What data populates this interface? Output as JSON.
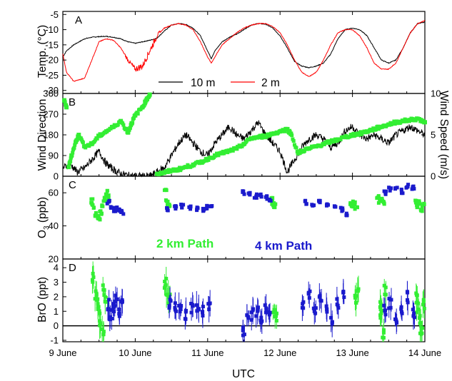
{
  "chart_data": [
    {
      "panel": "A",
      "type": "line",
      "ylabel": "Temp. (°C)",
      "ylim": [
        -31,
        -4
      ],
      "yticks": [
        "-5",
        "-10",
        "-15",
        "-20",
        "-25",
        "-30"
      ],
      "xlim": [
        9,
        14
      ],
      "series": [
        {
          "name": "10 m",
          "color": "#000000",
          "x": [
            9.0,
            9.05,
            9.15,
            9.3,
            9.4,
            9.5,
            9.6,
            9.7,
            9.8,
            9.9,
            10.0,
            10.1,
            10.2,
            10.3,
            10.4,
            10.5,
            10.6,
            10.7,
            10.8,
            10.9,
            11.0,
            11.05,
            11.1,
            11.2,
            11.3,
            11.4,
            11.5,
            11.6,
            11.7,
            11.8,
            11.9,
            12.0,
            12.1,
            12.2,
            12.3,
            12.4,
            12.5,
            12.6,
            12.7,
            12.8,
            12.9,
            13.0,
            13.1,
            13.2,
            13.3,
            13.4,
            13.5,
            13.6,
            13.7,
            13.8,
            13.9,
            14.0
          ],
          "y": [
            -19,
            -17,
            -15,
            -13,
            -12.5,
            -12.3,
            -12.2,
            -12.5,
            -13,
            -14,
            -14.5,
            -14,
            -13.5,
            -12.8,
            -10.5,
            -8.5,
            -8,
            -8.3,
            -9.5,
            -12,
            -17,
            -19.5,
            -17,
            -14,
            -12.5,
            -11.5,
            -10,
            -8.5,
            -8,
            -8.2,
            -9.5,
            -12,
            -16,
            -20.5,
            -22,
            -22.5,
            -22,
            -21,
            -18,
            -13,
            -10,
            -9.5,
            -10,
            -12,
            -16,
            -20,
            -21,
            -20,
            -16,
            -11,
            -8,
            -7.5
          ]
        },
        {
          "name": "2 m",
          "color": "#ff0000",
          "x": [
            9.0,
            9.05,
            9.15,
            9.3,
            9.4,
            9.5,
            9.6,
            9.7,
            9.8,
            9.9,
            10.0,
            10.1,
            10.2,
            10.3,
            10.4,
            10.5,
            10.6,
            10.7,
            10.8,
            10.9,
            11.0,
            11.05,
            11.1,
            11.2,
            11.3,
            11.4,
            11.5,
            11.6,
            11.7,
            11.8,
            11.9,
            12.0,
            12.1,
            12.2,
            12.3,
            12.4,
            12.5,
            12.6,
            12.7,
            12.8,
            12.9,
            13.0,
            13.1,
            13.2,
            13.3,
            13.4,
            13.5,
            13.6,
            13.7,
            13.8,
            13.9,
            14.0
          ],
          "y": [
            -18,
            -24,
            -27,
            -26,
            -20,
            -14,
            -13,
            -13.5,
            -16,
            -20,
            -23,
            -22,
            -17,
            -12,
            -9.5,
            -8.5,
            -8,
            -8.5,
            -10,
            -14,
            -19,
            -21,
            -19,
            -15,
            -13,
            -11,
            -9.5,
            -8.5,
            -8,
            -8,
            -9,
            -11,
            -15,
            -20,
            -24,
            -25.5,
            -24,
            -20,
            -15,
            -11,
            -10,
            -10,
            -12,
            -16,
            -21,
            -23,
            -23,
            -21,
            -16,
            -11,
            -8,
            -7
          ]
        }
      ],
      "legend": "bottom-right"
    },
    {
      "panel": "B",
      "type": "scatter",
      "ylabel": "Wind Direction",
      "ylabel_right": "Wind Speed (m/s)",
      "ylim": [
        0,
        360
      ],
      "ylim_right": [
        0,
        10
      ],
      "yticks": [
        "0",
        "90",
        "180",
        "270",
        "360"
      ],
      "yticks_right": [
        "0",
        "5",
        "10"
      ],
      "xlim": [
        9,
        14
      ],
      "series": [
        {
          "name": "Wind Direction",
          "color": "#33ee33",
          "x": [
            9.02,
            9.05,
            9.08,
            9.12,
            9.18,
            9.22,
            9.3,
            9.4,
            9.5,
            9.6,
            9.7,
            9.8,
            9.9,
            9.95,
            10.0,
            10.1,
            10.15,
            10.2,
            10.3,
            10.4,
            10.5,
            10.6,
            10.7,
            10.8,
            10.9,
            11.0,
            11.1,
            11.2,
            11.3,
            11.4,
            11.5,
            11.6,
            11.7,
            11.8,
            11.9,
            12.0,
            12.1,
            12.15,
            12.25,
            12.3,
            12.4,
            12.5,
            12.6,
            12.7,
            12.8,
            12.9,
            13.0,
            13.1,
            13.2,
            13.3,
            13.4,
            13.5,
            13.6,
            13.7,
            13.8,
            13.9,
            14.0
          ],
          "y": [
            330,
            300,
            40,
            90,
            150,
            180,
            130,
            140,
            175,
            195,
            215,
            240,
            190,
            230,
            265,
            300,
            330,
            355,
            10,
            15,
            25,
            30,
            40,
            50,
            60,
            75,
            90,
            100,
            110,
            120,
            140,
            165,
            170,
            175,
            185,
            195,
            205,
            185,
            100,
            110,
            120,
            130,
            140,
            150,
            160,
            170,
            180,
            185,
            195,
            205,
            215,
            225,
            235,
            240,
            245,
            250,
            235
          ]
        },
        {
          "name": "Wind Speed",
          "color": "#000000",
          "axis": "right",
          "x": [
            9.0,
            9.1,
            9.2,
            9.3,
            9.4,
            9.5,
            9.6,
            9.7,
            9.8,
            9.9,
            10.0,
            10.1,
            10.2,
            10.3,
            10.4,
            10.5,
            10.6,
            10.7,
            10.8,
            10.9,
            11.0,
            11.1,
            11.2,
            11.3,
            11.4,
            11.5,
            11.6,
            11.7,
            11.8,
            11.9,
            12.0,
            12.1,
            12.2,
            12.3,
            12.4,
            12.5,
            12.6,
            12.7,
            12.8,
            12.9,
            13.0,
            13.1,
            13.2,
            13.3,
            13.4,
            13.5,
            13.6,
            13.7,
            13.8,
            13.9,
            14.0
          ],
          "y": [
            1,
            1.5,
            0.5,
            1,
            2,
            3,
            1.5,
            0.8,
            0.3,
            0.1,
            0,
            0,
            0,
            0.5,
            1,
            2.5,
            4,
            5,
            4,
            3,
            2.5,
            4,
            5,
            6,
            5,
            4.5,
            5.5,
            6.5,
            5,
            4,
            3,
            0.5,
            2,
            3.5,
            4.5,
            5,
            4.5,
            3.5,
            4,
            5.5,
            6,
            5,
            4.5,
            5,
            4.5,
            4,
            5,
            5.5,
            6,
            5.5,
            5
          ]
        }
      ]
    },
    {
      "panel": "C",
      "type": "scatter",
      "ylabel": "O3 (ppb)",
      "ylim": [
        20,
        70
      ],
      "yticks": [
        "60",
        "40",
        "20"
      ],
      "xlim": [
        9,
        14
      ],
      "annotations": [
        {
          "text": "2 km Path",
          "color": "#33ee33"
        },
        {
          "text": "4 km Path",
          "color": "#1a1acc"
        }
      ],
      "series": [
        {
          "name": "2 km Path",
          "color": "#33ee33",
          "x": [
            9.4,
            9.42,
            9.45,
            9.48,
            9.5,
            9.52,
            9.55,
            9.58,
            9.6,
            9.62,
            10.42,
            10.44,
            10.46,
            11.88,
            11.9,
            11.92,
            12.98,
            13.0,
            13.02,
            13.05,
            13.35,
            13.38,
            13.4,
            13.43,
            13.88,
            13.9,
            13.93,
            13.96,
            13.98
          ],
          "y": [
            55,
            52,
            47,
            45,
            44,
            48,
            52,
            56,
            60,
            58,
            62,
            55,
            52,
            56,
            54,
            52,
            53,
            52,
            54,
            51,
            58,
            55,
            56,
            54,
            55,
            52,
            54,
            50,
            53
          ]
        },
        {
          "name": "4 km Path",
          "color": "#1a1acc",
          "x": [
            9.63,
            9.67,
            9.7,
            9.74,
            9.78,
            9.82,
            10.45,
            10.55,
            10.65,
            10.75,
            10.85,
            10.95,
            11.0,
            11.05,
            11.5,
            11.58,
            11.66,
            11.74,
            11.82,
            11.86,
            12.35,
            12.45,
            12.55,
            12.65,
            12.75,
            12.85,
            12.92,
            13.45,
            13.52,
            13.6,
            13.68,
            13.76,
            13.84
          ],
          "y": [
            54,
            52,
            50,
            50,
            49,
            48,
            50,
            51,
            52,
            51,
            50,
            50,
            51,
            52,
            60,
            59,
            58,
            58,
            57,
            56,
            54,
            53,
            54,
            53,
            51,
            50,
            47,
            60,
            62,
            63,
            61,
            64,
            63
          ]
        }
      ]
    },
    {
      "panel": "D",
      "type": "scatter",
      "ylabel": "BrO (ppt)",
      "ylim": [
        -1.1,
        4.6
      ],
      "yticks": [
        "4",
        "3",
        "2",
        "1",
        "0",
        "-1"
      ],
      "xlim": [
        9,
        14
      ],
      "series": [
        {
          "name": "2 km Path",
          "color": "#33ee33",
          "x": [
            9.42,
            9.45,
            9.48,
            9.5,
            9.52,
            9.55,
            9.57,
            9.6,
            10.42,
            10.44,
            10.47,
            11.92,
            11.95,
            13.05,
            13.08,
            13.38,
            13.4,
            13.42,
            13.45,
            13.88,
            13.9,
            13.93,
            13.95,
            13.98
          ],
          "y": [
            3.2,
            2.2,
            1.5,
            1,
            0.3,
            -0.5,
            2.5,
            1.8,
            3,
            2.5,
            1.8,
            1,
            0.5,
            1.8,
            2.2,
            1.5,
            0.8,
            -0.5,
            2.5,
            2,
            1.2,
            0.5,
            -0.2,
            1.5
          ]
        },
        {
          "name": "4 km Path",
          "color": "#1a1acc",
          "x": [
            9.62,
            9.66,
            9.7,
            9.74,
            9.78,
            9.82,
            10.48,
            10.55,
            10.62,
            10.7,
            10.78,
            10.86,
            10.94,
            11.02,
            11.5,
            11.56,
            11.62,
            11.68,
            11.74,
            11.8,
            11.86,
            12.32,
            12.4,
            12.48,
            12.56,
            12.64,
            12.72,
            12.8,
            12.88,
            13.45,
            13.52,
            13.6,
            13.68,
            13.76,
            13.84
          ],
          "y": [
            1.5,
            0.8,
            1.2,
            2,
            1,
            1.8,
            1.5,
            1.2,
            1,
            0.8,
            1.2,
            1.3,
            1,
            1.5,
            -0.5,
            0.5,
            0.8,
            1,
            0.5,
            1.2,
            0.8,
            1.5,
            2,
            1.2,
            1.8,
            1,
            0.5,
            1.5,
            2.2,
            1,
            1.5,
            0.5,
            1.2,
            2,
            0.8
          ]
        }
      ]
    }
  ],
  "xticks": [
    "9 June",
    "10 June",
    "11 June",
    "12 June",
    "13 June",
    "14 June"
  ],
  "xlabel": "UTC",
  "panel_labels": [
    "A",
    "B",
    "C",
    "D"
  ]
}
